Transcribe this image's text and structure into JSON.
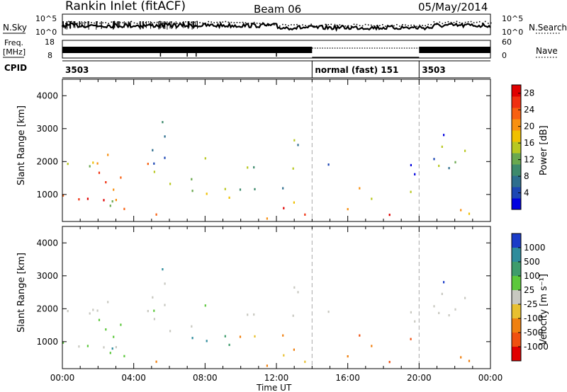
{
  "header": {
    "title": "Rankin Inlet (fitACF)",
    "beam": "Beam 06",
    "date": "05/May/2014"
  },
  "noise_panel": {
    "left_label": "N.Sky",
    "right_label": "N.Search",
    "left_ticks": [
      "10^5",
      "10^0"
    ],
    "right_ticks": [
      "10^5",
      "10^0"
    ]
  },
  "freq_panel": {
    "left_label_1": "Freq.",
    "left_label_2": "[MHz]",
    "right_label": "Nave",
    "left_ticks": [
      "18",
      "8"
    ],
    "right_ticks": [
      "60",
      "0"
    ]
  },
  "cpid_panel": {
    "label": "CPID",
    "segments": [
      {
        "label": "3503",
        "start_hour": 0,
        "end_hour": 14
      },
      {
        "label": "normal (fast) 151",
        "start_hour": 14,
        "end_hour": 20
      },
      {
        "label": "3503",
        "start_hour": 20,
        "end_hour": 24
      }
    ]
  },
  "chart_data": [
    {
      "type": "heatmap",
      "name": "power",
      "ylabel": "Slant Range [km]",
      "yticks": [
        "1000",
        "2000",
        "3000",
        "4000"
      ],
      "ylim": [
        180,
        4500
      ],
      "xlim_hours": [
        0,
        24
      ],
      "colorbar": {
        "label": "Power [dB]",
        "ticks": [
          "4",
          "8",
          "12",
          "16",
          "20",
          "24",
          "28"
        ],
        "range": [
          0,
          30
        ],
        "colors": [
          "#0000e0",
          "#1c46b4",
          "#2e6e8e",
          "#3e8a6c",
          "#6aa84f",
          "#b8c820",
          "#f0c000",
          "#f89010",
          "#f86010",
          "#f03010",
          "#e00000"
        ]
      }
    },
    {
      "type": "heatmap",
      "name": "velocity",
      "ylabel": "Slant Range [km]",
      "yticks": [
        "1000",
        "2000",
        "3000",
        "4000"
      ],
      "ylim": [
        180,
        4500
      ],
      "xlim_hours": [
        0,
        24
      ],
      "xticks": [
        "00:00",
        "04:00",
        "08:00",
        "12:00",
        "16:00",
        "20:00",
        "00:00"
      ],
      "xlabel": "Time UT",
      "colorbar": {
        "label": "Velocity [m s⁻¹]",
        "ticks": [
          "1000",
          "500",
          "100",
          "25",
          "-25",
          "-100",
          "-500",
          "-1000"
        ],
        "colors": [
          "#1a3cc8",
          "#2e8c9c",
          "#3e9c6c",
          "#5cc83c",
          "#c8c8c0",
          "#e8c030",
          "#f08010",
          "#f05010",
          "#e00000"
        ]
      }
    }
  ]
}
